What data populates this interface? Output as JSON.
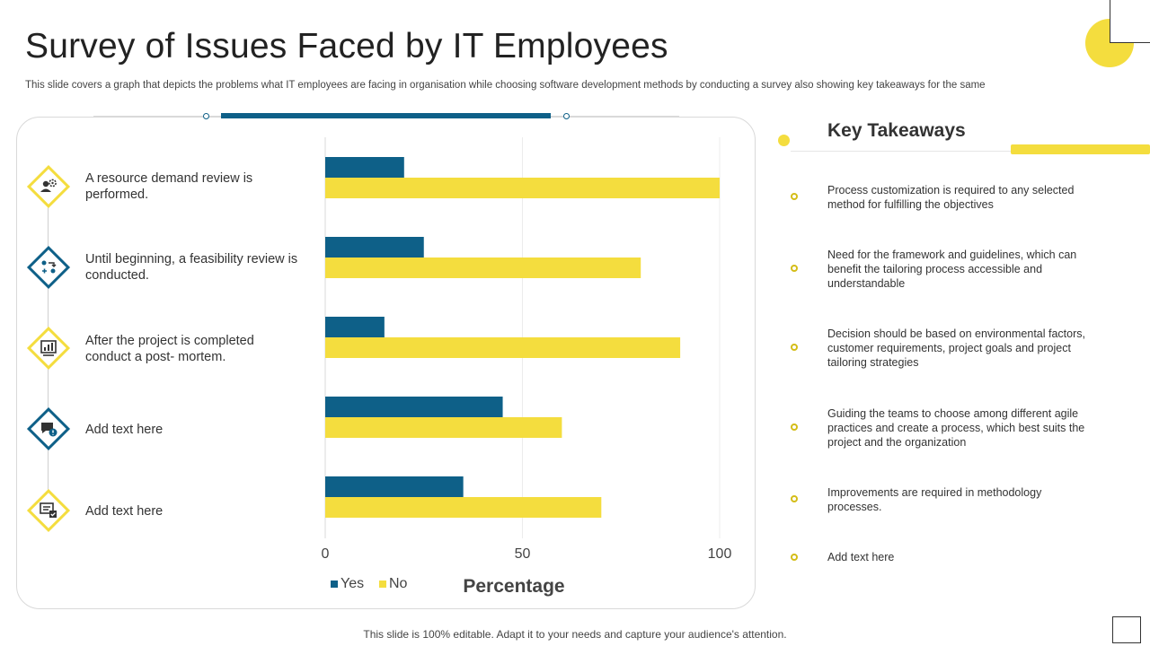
{
  "page": {
    "title": "Survey of Issues Faced by IT Employees",
    "subtitle": "This slide covers a graph that depicts the problems what IT employees are facing in organisation while choosing software development methods by conducting a survey  also showing key takeaways for the same",
    "footer": "This slide is 100% editable. Adapt it to your needs and capture your audience's attention."
  },
  "colors": {
    "yes": "#0e6088",
    "no": "#f4dd3e",
    "accent": "#f4dd3e"
  },
  "items": [
    {
      "label": "A resource demand review is performed.",
      "icon": "resource-review-icon",
      "style": "yellow"
    },
    {
      "label": "Until beginning, a feasibility review is conducted.",
      "icon": "feasibility-review-icon",
      "style": "blue"
    },
    {
      "label": "After the project is completed conduct a post- mortem.",
      "icon": "post-mortem-chart-icon",
      "style": "yellow"
    },
    {
      "label": "Add text here",
      "icon": "chat-alert-icon",
      "style": "blue"
    },
    {
      "label": "Add text here",
      "icon": "monitor-checklist-icon",
      "style": "yellow"
    }
  ],
  "chart_data": {
    "type": "bar",
    "orientation": "horizontal",
    "categories": [
      "A resource demand review is performed.",
      "Until beginning, a feasibility review is conducted.",
      "After the project is completed conduct a post- mortem.",
      "Add text here",
      "Add text here"
    ],
    "series": [
      {
        "name": "Yes",
        "values": [
          20,
          25,
          15,
          45,
          35
        ]
      },
      {
        "name": "No",
        "values": [
          100,
          80,
          90,
          60,
          70
        ]
      }
    ],
    "xlabel": "Percentage",
    "xlim": [
      0,
      100
    ],
    "xticks": [
      "0",
      "50",
      "100"
    ],
    "grid": true,
    "legend": "bottom-left"
  },
  "key_takeaways": {
    "title": "Key Takeaways",
    "items": [
      "Process customization is required to any selected method for fulfilling the objectives",
      "Need for the framework  and guidelines, which can benefit the tailoring process accessible and understandable",
      "Decision should be based on environmental factors, customer requirements,  project goals and project tailoring strategies",
      "Guiding the teams to choose among different agile practices and create a process, which best suits the project and the organization",
      "Improvements  are required in methodology processes.",
      "Add text here"
    ]
  }
}
